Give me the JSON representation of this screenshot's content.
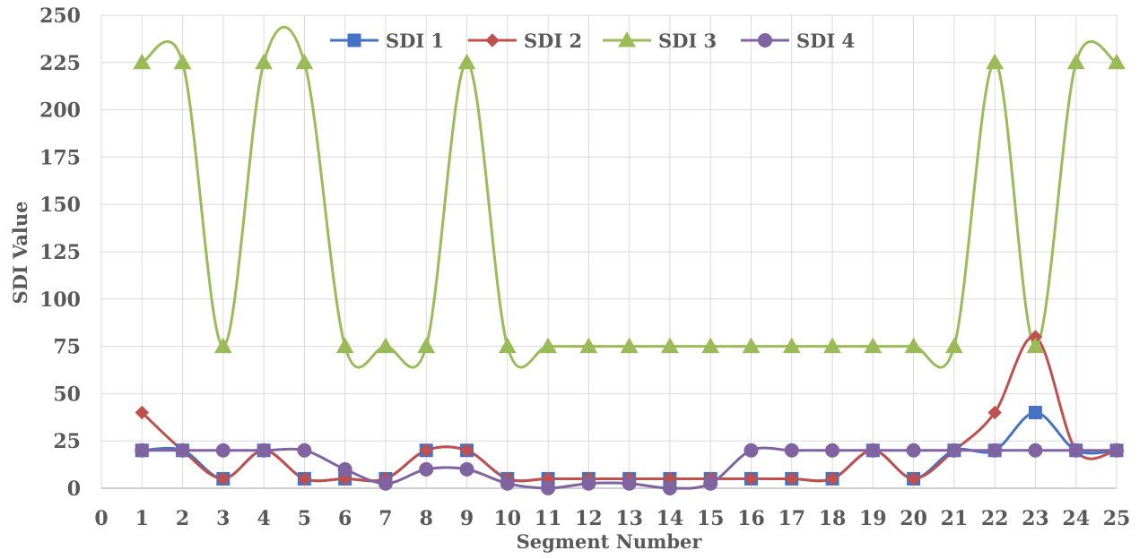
{
  "chart_data": {
    "type": "line",
    "title": "",
    "xlabel": "Segment Number",
    "ylabel": "SDI Value",
    "xlim": [
      0,
      25
    ],
    "ylim": [
      0,
      250
    ],
    "x_ticks": [
      "0",
      "1",
      "2",
      "3",
      "4",
      "5",
      "6",
      "7",
      "8",
      "9",
      "10",
      "11",
      "12",
      "13",
      "14",
      "15",
      "16",
      "17",
      "18",
      "19",
      "20",
      "21",
      "22",
      "23",
      "24",
      "25"
    ],
    "y_ticks": [
      "0",
      "25",
      "50",
      "75",
      "100",
      "125",
      "150",
      "175",
      "200",
      "225",
      "250"
    ],
    "grid": true,
    "smooth": true,
    "legend_position": "top",
    "x": [
      1,
      2,
      3,
      4,
      5,
      6,
      7,
      8,
      9,
      10,
      11,
      12,
      13,
      14,
      15,
      16,
      17,
      18,
      19,
      20,
      21,
      22,
      23,
      24,
      25
    ],
    "series": [
      {
        "name": "SDI 1",
        "color": "#4472C4",
        "marker": "square",
        "values": [
          20,
          20,
          5,
          20,
          5,
          5,
          5,
          20,
          20,
          5,
          5,
          5,
          5,
          5,
          5,
          5,
          5,
          5,
          20,
          5,
          20,
          20,
          40,
          20,
          20
        ]
      },
      {
        "name": "SDI 2",
        "color": "#C0504D",
        "marker": "diamond",
        "values": [
          40,
          20,
          5,
          20,
          5,
          5,
          5,
          20,
          20,
          5,
          5,
          5,
          5,
          5,
          5,
          5,
          5,
          5,
          20,
          5,
          20,
          40,
          80,
          20,
          20
        ]
      },
      {
        "name": "SDI 3",
        "color": "#9BBB59",
        "marker": "triangle",
        "values": [
          225,
          225,
          75,
          225,
          225,
          75,
          75,
          75,
          225,
          75,
          75,
          75,
          75,
          75,
          75,
          75,
          75,
          75,
          75,
          75,
          75,
          225,
          75,
          225,
          225
        ]
      },
      {
        "name": "SDI 4",
        "color": "#8064A2",
        "marker": "circle",
        "values": [
          20,
          20,
          20,
          20,
          20,
          10,
          2.5,
          10,
          10,
          2.5,
          0,
          2.5,
          2.5,
          0,
          2.5,
          20,
          20,
          20,
          20,
          20,
          20,
          20,
          20,
          20,
          20
        ]
      }
    ]
  }
}
